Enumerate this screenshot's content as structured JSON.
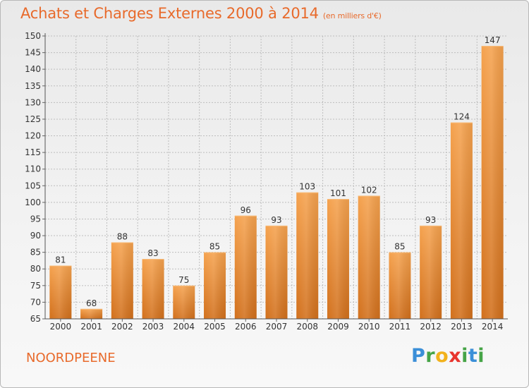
{
  "header": {
    "title": "Achats et Charges Externes 2000 à 2014",
    "subtitle": "(en milliers d'€)"
  },
  "footer": {
    "city": "NOORDPEENE",
    "logo": "Proxiti"
  },
  "colors": {
    "accent": "#e86a2b",
    "bar_top": "#f5a24e",
    "bar_bottom": "#d2701c",
    "grid": "#bdbdbd",
    "axis_text": "#333333"
  },
  "chart_data": {
    "type": "bar",
    "title": "Achats et Charges Externes 2000 à 2014",
    "subtitle": "(en milliers d'€)",
    "xlabel": "",
    "ylabel": "",
    "categories": [
      "2000",
      "2001",
      "2002",
      "2003",
      "2004",
      "2005",
      "2006",
      "2007",
      "2008",
      "2009",
      "2010",
      "2011",
      "2012",
      "2013",
      "2014"
    ],
    "values": [
      81,
      68,
      88,
      83,
      75,
      85,
      96,
      93,
      103,
      101,
      102,
      85,
      93,
      124,
      147
    ],
    "ylim": [
      65,
      150
    ],
    "yticks": [
      65,
      70,
      75,
      80,
      85,
      90,
      95,
      100,
      105,
      110,
      115,
      120,
      125,
      130,
      135,
      140,
      145,
      150
    ],
    "grid": "horizontal dashed",
    "legend": "none"
  }
}
